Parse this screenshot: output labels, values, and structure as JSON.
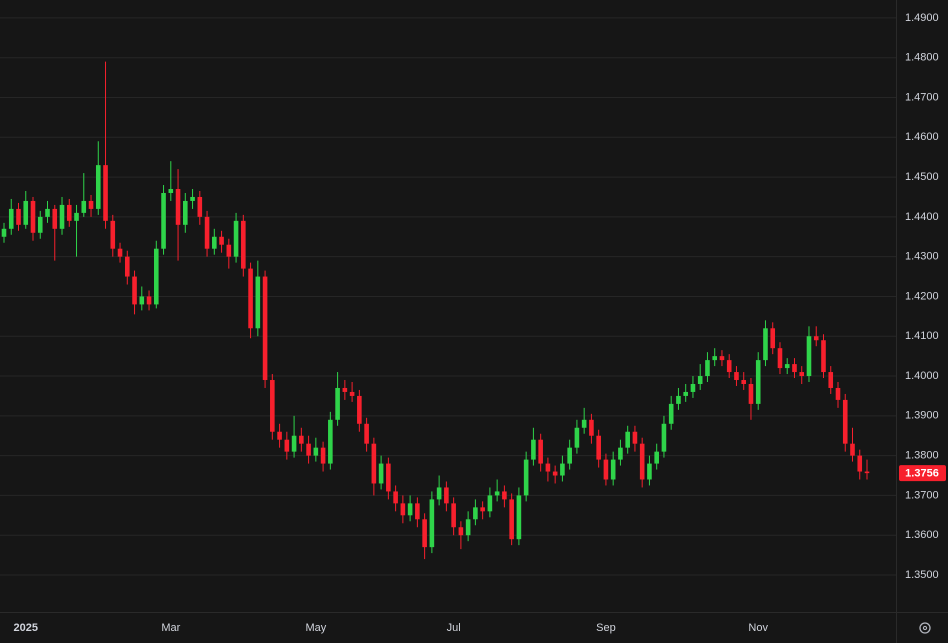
{
  "chart_data": {
    "type": "candlestick",
    "up_color": "#2fd44a",
    "down_color": "#f7202d",
    "grid": true,
    "ylim": [
      1.3407,
      1.4945
    ],
    "yticks": [
      {
        "value": 1.35,
        "label": "1.3500"
      },
      {
        "value": 1.36,
        "label": "1.3600"
      },
      {
        "value": 1.37,
        "label": "1.3700"
      },
      {
        "value": 1.38,
        "label": "1.3800"
      },
      {
        "value": 1.39,
        "label": "1.3900"
      },
      {
        "value": 1.4,
        "label": "1.4000"
      },
      {
        "value": 1.41,
        "label": "1.4100"
      },
      {
        "value": 1.42,
        "label": "1.4200"
      },
      {
        "value": 1.43,
        "label": "1.4300"
      },
      {
        "value": 1.44,
        "label": "1.4400"
      },
      {
        "value": 1.45,
        "label": "1.4500"
      },
      {
        "value": 1.46,
        "label": "1.4600"
      },
      {
        "value": 1.47,
        "label": "1.4700"
      },
      {
        "value": 1.48,
        "label": "1.4800"
      },
      {
        "value": 1.49,
        "label": "1.4900"
      }
    ],
    "categories": [
      null,
      null,
      null,
      "2025",
      null,
      null,
      null,
      null,
      null,
      null,
      null,
      null,
      null,
      null,
      null,
      null,
      null,
      null,
      null,
      null,
      null,
      null,
      null,
      "Mar",
      null,
      null,
      null,
      null,
      null,
      null,
      null,
      null,
      null,
      null,
      null,
      null,
      null,
      null,
      null,
      null,
      null,
      null,
      null,
      "May",
      null,
      null,
      null,
      null,
      null,
      null,
      null,
      null,
      null,
      null,
      null,
      null,
      null,
      null,
      null,
      null,
      null,
      null,
      "Jul",
      null,
      null,
      null,
      null,
      null,
      null,
      null,
      null,
      null,
      null,
      null,
      null,
      null,
      null,
      null,
      null,
      null,
      null,
      null,
      null,
      "Sep",
      null,
      null,
      null,
      null,
      null,
      null,
      null,
      null,
      null,
      null,
      null,
      null,
      null,
      null,
      null,
      null,
      null,
      null,
      null,
      null,
      "Nov",
      null,
      null,
      null,
      null,
      null,
      null,
      null,
      null,
      null,
      null,
      null,
      null,
      null,
      null,
      null
    ],
    "open": [
      1.435,
      1.437,
      1.442,
      1.438,
      1.444,
      1.436,
      1.44,
      1.442,
      1.437,
      1.443,
      1.439,
      1.441,
      1.444,
      1.442,
      1.453,
      1.439,
      1.432,
      1.43,
      1.425,
      1.418,
      1.42,
      1.418,
      1.432,
      1.446,
      1.447,
      1.438,
      1.444,
      1.445,
      1.44,
      1.432,
      1.435,
      1.433,
      1.43,
      1.439,
      1.427,
      1.412,
      1.425,
      1.399,
      1.386,
      1.384,
      1.381,
      1.385,
      1.383,
      1.38,
      1.382,
      1.378,
      1.389,
      1.397,
      1.396,
      1.395,
      1.388,
      1.383,
      1.373,
      1.378,
      1.371,
      1.368,
      1.365,
      1.368,
      1.364,
      1.357,
      1.369,
      1.372,
      1.368,
      1.362,
      1.36,
      1.364,
      1.367,
      1.366,
      1.37,
      1.371,
      1.369,
      1.359,
      1.37,
      1.379,
      1.384,
      1.378,
      1.376,
      1.375,
      1.378,
      1.382,
      1.387,
      1.389,
      1.385,
      1.379,
      1.374,
      1.379,
      1.382,
      1.386,
      1.383,
      1.374,
      1.378,
      1.381,
      1.388,
      1.393,
      1.395,
      1.396,
      1.398,
      1.4,
      1.404,
      1.405,
      1.404,
      1.401,
      1.399,
      1.398,
      1.393,
      1.404,
      1.412,
      1.407,
      1.402,
      1.403,
      1.401,
      1.4,
      1.41,
      1.409,
      1.401,
      1.397,
      1.394,
      1.383,
      1.38,
      1.376
    ],
    "high": [
      1.4385,
      1.4445,
      1.4435,
      1.4465,
      1.445,
      1.4415,
      1.444,
      1.443,
      1.445,
      1.4445,
      1.443,
      1.451,
      1.4455,
      1.459,
      1.479,
      1.4405,
      1.4335,
      1.4315,
      1.4265,
      1.4225,
      1.4215,
      1.434,
      1.448,
      1.454,
      1.452,
      1.446,
      1.447,
      1.4465,
      1.4415,
      1.437,
      1.4365,
      1.4345,
      1.441,
      1.4405,
      1.4285,
      1.429,
      1.4265,
      1.4005,
      1.388,
      1.386,
      1.39,
      1.387,
      1.385,
      1.3845,
      1.3835,
      1.391,
      1.401,
      1.399,
      1.3985,
      1.3965,
      1.3895,
      1.3845,
      1.38,
      1.3795,
      1.3725,
      1.37,
      1.37,
      1.3695,
      1.3655,
      1.371,
      1.375,
      1.3735,
      1.3695,
      1.3635,
      1.366,
      1.369,
      1.3685,
      1.372,
      1.374,
      1.3725,
      1.3705,
      1.372,
      1.381,
      1.387,
      1.3855,
      1.3795,
      1.3775,
      1.38,
      1.384,
      1.389,
      1.392,
      1.3905,
      1.3865,
      1.3805,
      1.381,
      1.384,
      1.3875,
      1.3875,
      1.3845,
      1.38,
      1.383,
      1.39,
      1.395,
      1.397,
      1.398,
      1.4,
      1.403,
      1.406,
      1.407,
      1.4065,
      1.4055,
      1.4025,
      1.401,
      1.3995,
      1.406,
      1.414,
      1.4135,
      1.4085,
      1.4045,
      1.4045,
      1.4025,
      1.4125,
      1.4125,
      1.4105,
      1.4025,
      1.3985,
      1.3955,
      1.387,
      1.3815,
      1.379
    ],
    "low": [
      1.4335,
      1.4355,
      1.4365,
      1.437,
      1.434,
      1.4345,
      1.4385,
      1.429,
      1.4355,
      1.4375,
      1.43,
      1.44,
      1.44,
      1.4405,
      1.437,
      1.43,
      1.4285,
      1.423,
      1.4155,
      1.4165,
      1.4165,
      1.417,
      1.4305,
      1.444,
      1.429,
      1.436,
      1.442,
      1.438,
      1.43,
      1.4305,
      1.431,
      1.427,
      1.4285,
      1.425,
      1.4095,
      1.41,
      1.397,
      1.384,
      1.382,
      1.379,
      1.3795,
      1.381,
      1.378,
      1.3785,
      1.376,
      1.3765,
      1.3875,
      1.394,
      1.3935,
      1.386,
      1.381,
      1.37,
      1.3715,
      1.369,
      1.366,
      1.363,
      1.3635,
      1.362,
      1.354,
      1.3555,
      1.3675,
      1.366,
      1.36,
      1.3565,
      1.3585,
      1.3625,
      1.364,
      1.3645,
      1.3685,
      1.367,
      1.3575,
      1.3575,
      1.3685,
      1.3775,
      1.376,
      1.3735,
      1.373,
      1.3735,
      1.3765,
      1.3805,
      1.3855,
      1.383,
      1.377,
      1.3725,
      1.3725,
      1.3775,
      1.3805,
      1.381,
      1.372,
      1.3725,
      1.3765,
      1.3795,
      1.3865,
      1.3915,
      1.3935,
      1.3945,
      1.3965,
      1.3985,
      1.4025,
      1.4025,
      1.3995,
      1.3975,
      1.3965,
      1.389,
      1.3915,
      1.4025,
      1.4055,
      1.4005,
      1.4005,
      1.3995,
      1.398,
      1.3985,
      1.4075,
      1.3995,
      1.3955,
      1.392,
      1.381,
      1.3785,
      1.374,
      1.374
    ],
    "close": [
      1.437,
      1.442,
      1.438,
      1.444,
      1.436,
      1.44,
      1.442,
      1.437,
      1.443,
      1.439,
      1.441,
      1.444,
      1.442,
      1.453,
      1.439,
      1.432,
      1.43,
      1.425,
      1.418,
      1.42,
      1.418,
      1.432,
      1.446,
      1.447,
      1.438,
      1.444,
      1.445,
      1.44,
      1.432,
      1.435,
      1.433,
      1.43,
      1.439,
      1.427,
      1.412,
      1.425,
      1.399,
      1.386,
      1.384,
      1.381,
      1.385,
      1.383,
      1.38,
      1.382,
      1.378,
      1.389,
      1.397,
      1.396,
      1.395,
      1.388,
      1.383,
      1.373,
      1.378,
      1.371,
      1.368,
      1.365,
      1.368,
      1.364,
      1.357,
      1.369,
      1.372,
      1.368,
      1.362,
      1.36,
      1.364,
      1.367,
      1.366,
      1.37,
      1.371,
      1.369,
      1.359,
      1.37,
      1.379,
      1.384,
      1.378,
      1.376,
      1.375,
      1.378,
      1.382,
      1.387,
      1.389,
      1.385,
      1.379,
      1.374,
      1.379,
      1.382,
      1.386,
      1.383,
      1.374,
      1.378,
      1.381,
      1.388,
      1.393,
      1.395,
      1.396,
      1.398,
      1.4,
      1.404,
      1.405,
      1.404,
      1.401,
      1.399,
      1.398,
      1.393,
      1.404,
      1.412,
      1.407,
      1.402,
      1.403,
      1.401,
      1.4,
      1.41,
      1.409,
      1.401,
      1.397,
      1.394,
      1.383,
      1.38,
      1.376,
      1.3756
    ]
  }
}
